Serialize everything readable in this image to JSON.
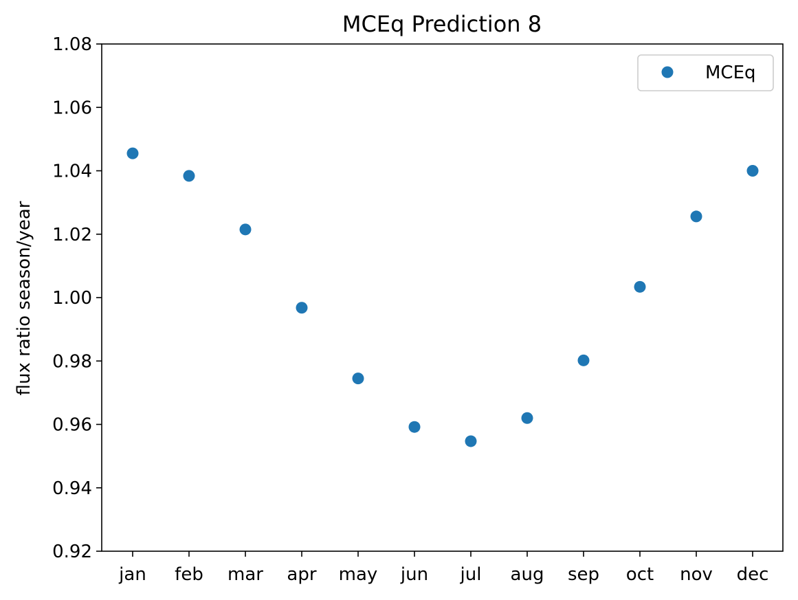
{
  "chart_data": {
    "type": "scatter",
    "title": "MCEq Prediction 8",
    "xlabel": "",
    "ylabel": "flux ratio season/year",
    "categories": [
      "jan",
      "feb",
      "mar",
      "apr",
      "may",
      "jun",
      "jul",
      "aug",
      "sep",
      "oct",
      "nov",
      "dec"
    ],
    "series": [
      {
        "name": "MCEq",
        "color": "#1f77b4",
        "marker": "circle",
        "values": [
          1.0455,
          1.0384,
          1.0215,
          0.9968,
          0.9745,
          0.9592,
          0.9547,
          0.962,
          0.9802,
          1.0034,
          1.0256,
          1.04
        ]
      }
    ],
    "ylim": [
      0.92,
      1.08
    ],
    "yticks": [
      "0.92",
      "0.94",
      "0.96",
      "0.98",
      "1.00",
      "1.02",
      "1.04",
      "1.06",
      "1.08"
    ],
    "grid": false,
    "legend_position": "upper right"
  }
}
